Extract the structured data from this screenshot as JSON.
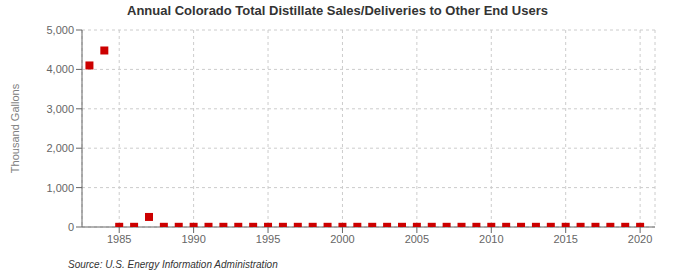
{
  "chart_data": {
    "type": "scatter",
    "title": "Annual Colorado Total Distillate Sales/Deliveries to Other End Users",
    "ylabel": "Thousand Gallons",
    "annotations": [
      "Source: U.S. Energy Information Administration"
    ],
    "x": [
      1983,
      1984,
      1985,
      1986,
      1987,
      1988,
      1989,
      1990,
      1991,
      1992,
      1993,
      1994,
      1995,
      1996,
      1997,
      1998,
      1999,
      2000,
      2001,
      2002,
      2003,
      2004,
      2005,
      2006,
      2007,
      2008,
      2009,
      2010,
      2011,
      2012,
      2013,
      2014,
      2015,
      2016,
      2017,
      2018,
      2019,
      2020
    ],
    "values": [
      4100,
      4480,
      5,
      5,
      255,
      5,
      5,
      5,
      5,
      5,
      5,
      5,
      5,
      5,
      5,
      5,
      5,
      5,
      5,
      5,
      5,
      5,
      5,
      5,
      5,
      5,
      5,
      5,
      5,
      5,
      5,
      5,
      5,
      5,
      5,
      5,
      5,
      5
    ],
    "color": "#cc0000",
    "marker": "square",
    "xlim": [
      1982.5,
      2021
    ],
    "xticks": [
      1985,
      1990,
      1995,
      2000,
      2005,
      2010,
      2015,
      2020
    ],
    "ylim": [
      0,
      5000
    ],
    "yticks": [
      0,
      {
        "value": 1000,
        "label": "1,000"
      },
      {
        "value": 2000,
        "label": "2,000"
      },
      {
        "value": 3000,
        "label": "3,000"
      },
      {
        "value": 4000,
        "label": "4,000"
      },
      {
        "value": 5000,
        "label": "5,000"
      }
    ],
    "grid": true
  }
}
